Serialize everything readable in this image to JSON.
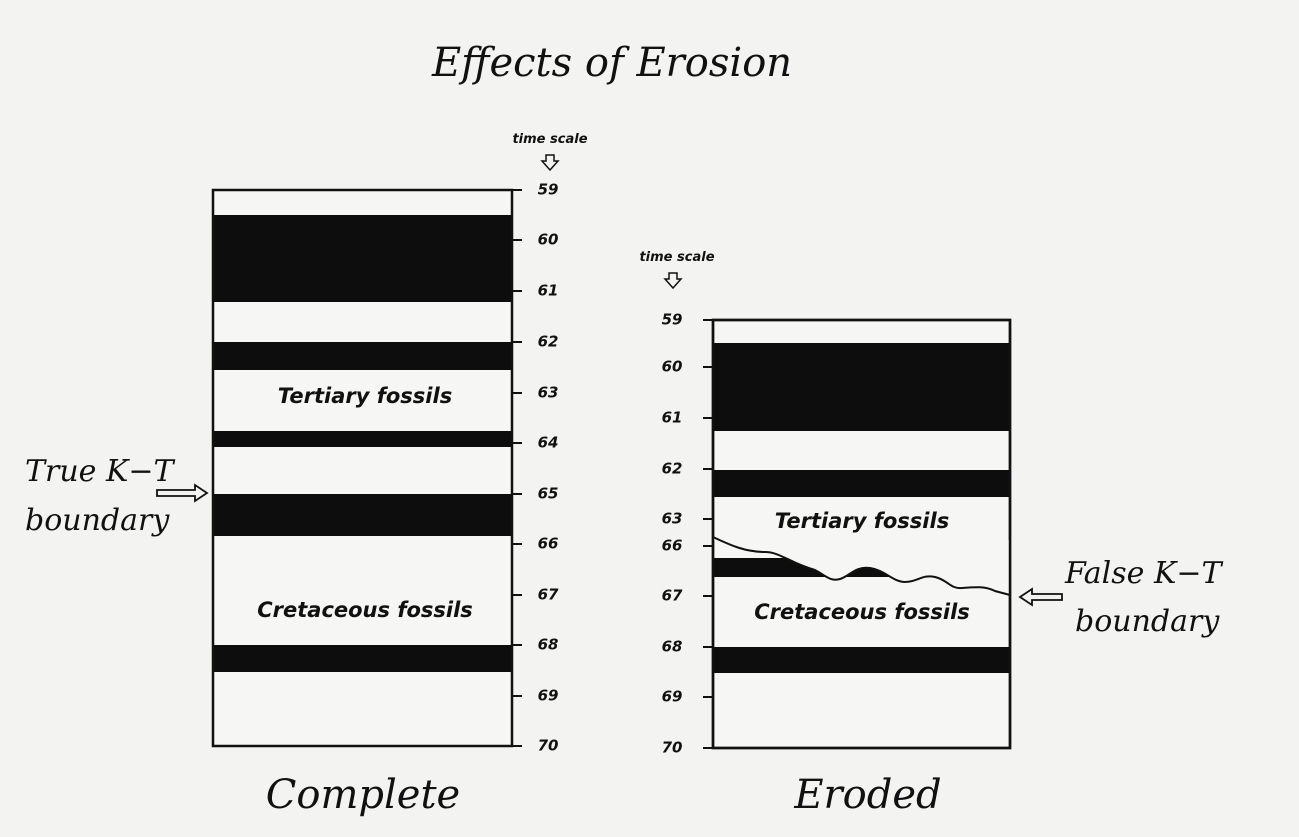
{
  "title": "Effects of Erosion",
  "columns": [
    {
      "caption": "Complete",
      "time_scale_label": "time scale",
      "ticks": [
        "59",
        "60",
        "61",
        "62",
        "63",
        "64",
        "65",
        "66",
        "67",
        "68",
        "69",
        "70"
      ],
      "layers": [
        "Tertiary fossils",
        "Cretaceous fossils"
      ],
      "annotation": [
        "True K−T",
        "boundary"
      ]
    },
    {
      "caption": "Eroded",
      "time_scale_label": "time scale",
      "ticks": [
        "59",
        "60",
        "61",
        "62",
        "63",
        "66",
        "67",
        "68",
        "69",
        "70"
      ],
      "layers": [
        "Tertiary fossils",
        "Cretaceous fossils"
      ],
      "annotation": [
        "False K−T",
        "boundary"
      ]
    }
  ]
}
